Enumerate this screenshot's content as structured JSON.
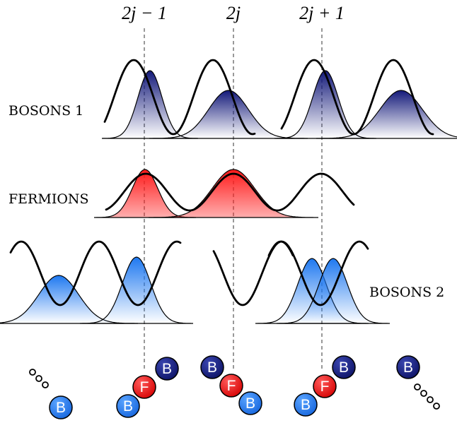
{
  "site_labels": {
    "left": "2j − 1",
    "middle": "2j",
    "right": "2j + 1"
  },
  "row_labels": {
    "bosons1": "BOSONS 1",
    "fermions": "FERMIONS",
    "bosons2": "BOSONS 2"
  },
  "particles": {
    "boson_letter": "B",
    "fermion_letter": "F"
  },
  "colors": {
    "boson1": "#141a7a",
    "fermion": "#ff1a1a",
    "boson2": "#1e78f0",
    "potential": "#000000",
    "guide_line": "#333333"
  }
}
